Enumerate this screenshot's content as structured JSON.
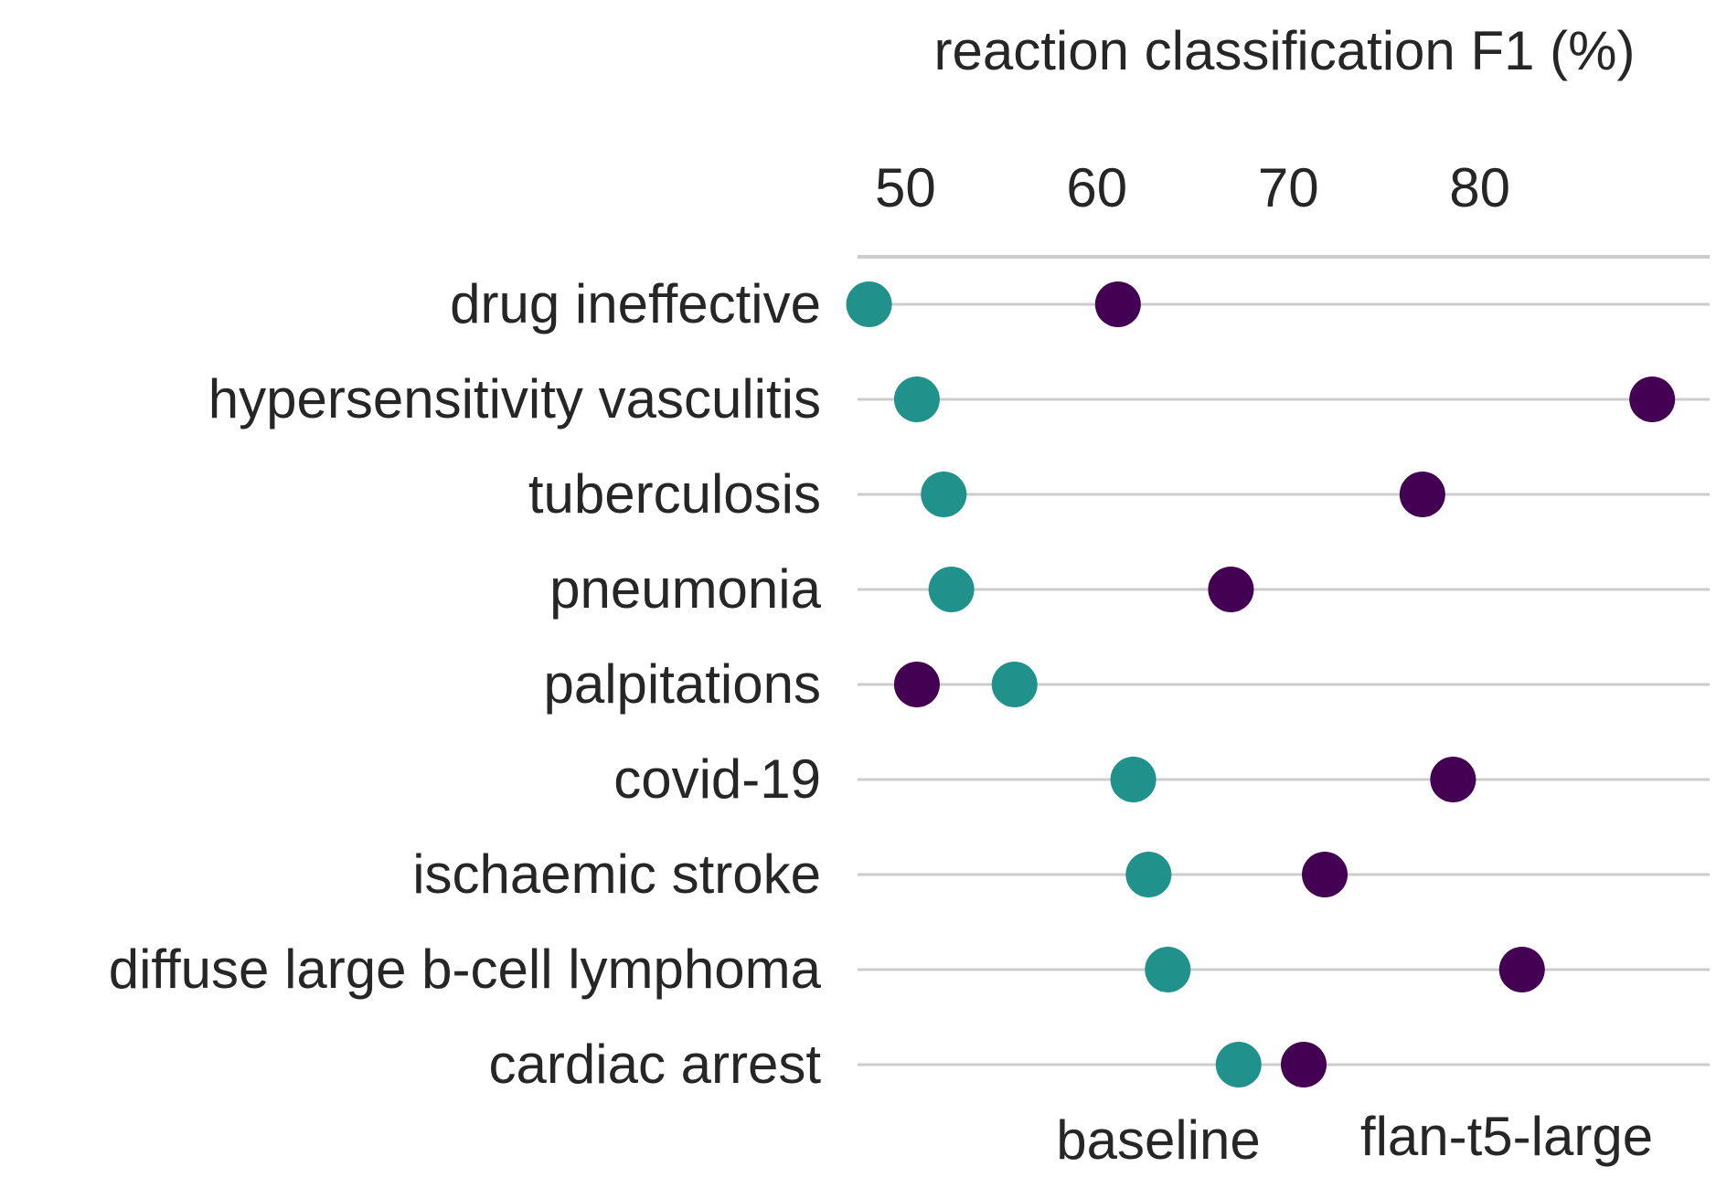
{
  "chart_data": {
    "type": "scatter",
    "title": "",
    "xlabel": "reaction classification F1 (%)",
    "ylabel": "",
    "xlim": [
      47.5,
      92
    ],
    "x_ticks": [
      "50",
      "60",
      "70",
      "80"
    ],
    "x_axis_position": "top",
    "grid": "horizontal",
    "legend": "bottom, inline labels under markers",
    "categories": [
      "drug ineffective",
      "hypersensitivity vasculitis",
      "tuberculosis",
      "pneumonia",
      "palpitations",
      "covid-19",
      "ischaemic stroke",
      "diffuse large b-cell lymphoma",
      "cardiac arrest"
    ],
    "series": [
      {
        "name": "baseline",
        "color": "#21918c",
        "values": [
          48.1,
          50.6,
          52.0,
          52.4,
          55.7,
          61.9,
          62.7,
          63.7,
          67.4
        ]
      },
      {
        "name": "flan-t5-large",
        "color": "#440154",
        "values": [
          61.1,
          89.0,
          77.0,
          67.0,
          50.6,
          78.6,
          71.9,
          82.2,
          70.8
        ]
      }
    ]
  }
}
